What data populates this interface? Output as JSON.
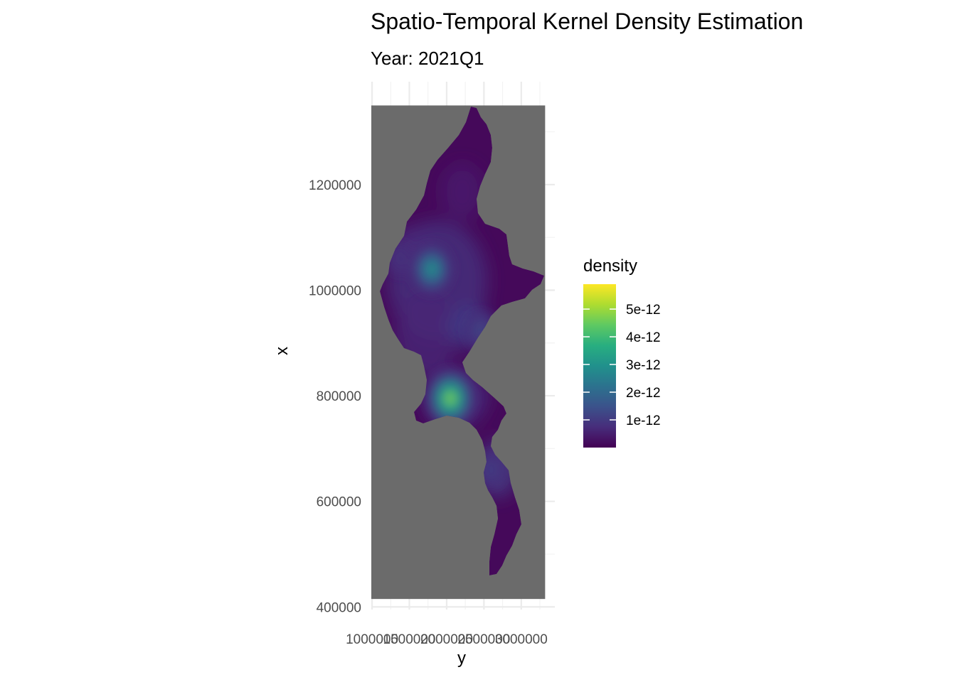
{
  "chart_data": {
    "type": "heatmap",
    "title": "Spatio-Temporal Kernel Density Estimation",
    "subtitle": "Year: 2021Q1",
    "xlabel": "y",
    "ylabel": "x",
    "x_ticks": [
      1000000,
      1500000,
      2000000,
      2500000,
      3000000
    ],
    "x_tick_labels": [
      "1000000",
      "1500000",
      "2000000",
      "2500000",
      "3000000"
    ],
    "y_ticks": [
      400000,
      600000,
      800000,
      1000000,
      1200000
    ],
    "y_tick_labels": [
      "400000",
      "600000",
      "800000",
      "1000000",
      "1200000"
    ],
    "xlim": [
      990000,
      3450000
    ],
    "ylim": [
      395000,
      1395000
    ],
    "raster_extent": {
      "x": [
        990000,
        3320000
      ],
      "y": [
        415000,
        1350000
      ]
    },
    "na_color": "#6b6b6b",
    "grid": true,
    "legend": {
      "title": "density",
      "position": "right",
      "colorscale": "viridis",
      "range": [
        0,
        5.9e-12
      ],
      "breaks": [
        1e-12,
        2e-12,
        3e-12,
        4e-12,
        5e-12
      ],
      "labels": [
        "1e-12",
        "2e-12",
        "3e-12",
        "4e-12",
        "5e-12"
      ]
    },
    "density_peaks": [
      {
        "y": 2050000,
        "x": 795000,
        "density": 5.8e-12
      },
      {
        "y": 1800000,
        "x": 1040000,
        "density": 3.6e-12
      },
      {
        "y": 2450000,
        "x": 925000,
        "density": 1.4e-12
      },
      {
        "y": 2600000,
        "x": 660000,
        "density": 1.2e-12
      },
      {
        "y": 1380000,
        "x": 1060000,
        "density": 8e-13
      }
    ]
  }
}
